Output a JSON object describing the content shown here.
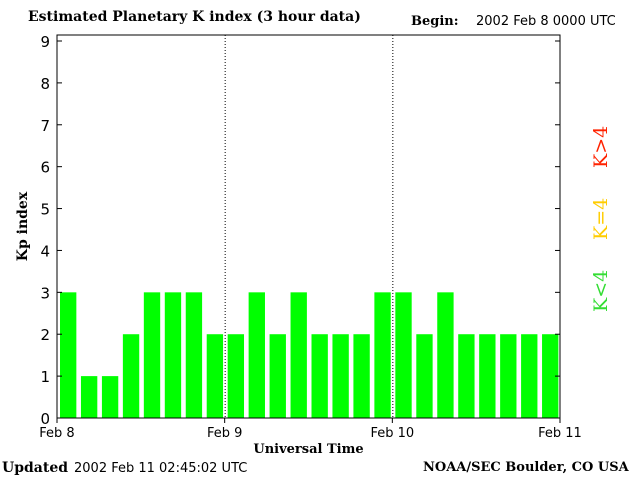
{
  "header": {
    "title": "Estimated Planetary K index (3 hour data)",
    "begin_label": "Begin:",
    "begin_value": "2002 Feb 8 0000 UTC"
  },
  "footer": {
    "updated_label": "Updated",
    "updated_value": "2002 Feb 11 02:45:02 UTC",
    "credit": "NOAA/SEC Boulder, CO USA"
  },
  "legend": [
    {
      "label": "K<4",
      "color": "#33dd33"
    },
    {
      "label": "K=4",
      "color": "#ffcc00"
    },
    {
      "label": "K>4",
      "color": "#ff2200"
    }
  ],
  "chart_data": {
    "type": "bar",
    "xlabel": "Universal Time",
    "ylabel": "Kp index",
    "ylim": [
      0,
      9
    ],
    "yticks": [
      0,
      1,
      2,
      3,
      4,
      5,
      6,
      7,
      8,
      9
    ],
    "x_ticks": [
      "Feb 8",
      "Feb 9",
      "Feb 10",
      "Feb 11"
    ],
    "bar_color": "#00ff00",
    "day_separators": [
      "Feb 9",
      "Feb 10"
    ],
    "values": [
      3,
      1,
      1,
      2,
      3,
      3,
      3,
      2,
      2,
      3,
      2,
      3,
      2,
      2,
      2,
      3,
      3,
      2,
      3,
      2,
      2,
      2,
      2,
      2
    ]
  }
}
